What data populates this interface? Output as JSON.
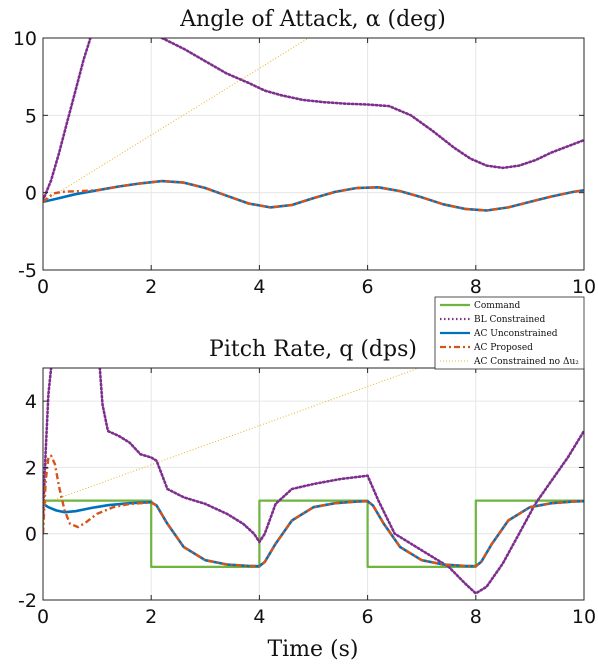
{
  "chart_data": [
    {
      "type": "line",
      "title": "Angle of Attack, α (deg)",
      "xlabel": "",
      "ylabel": "",
      "xlim": [
        0,
        10
      ],
      "ylim": [
        -5,
        10
      ],
      "xticks": [
        0,
        2,
        4,
        6,
        8,
        10
      ],
      "yticks": [
        -5,
        0,
        5,
        10
      ],
      "grid": true,
      "series": [
        {
          "key": "bl",
          "x": [
            0,
            0.15,
            0.3,
            0.45,
            0.6,
            0.75,
            0.85,
            0.9
          ],
          "y": [
            -0.5,
            0.8,
            2.6,
            4.6,
            6.6,
            8.6,
            9.7,
            10.3
          ]
        },
        {
          "key": "bl2",
          "x": [
            2.2,
            2.6,
            3.0,
            3.4,
            3.8,
            4.1,
            4.4,
            4.8,
            5.2,
            5.6,
            6.0,
            6.4,
            6.8,
            7.2,
            7.6,
            7.9,
            8.2,
            8.5,
            8.8,
            9.1,
            9.4,
            9.7,
            10.0
          ],
          "y": [
            10.0,
            9.3,
            8.5,
            7.7,
            7.1,
            6.6,
            6.3,
            6.0,
            5.85,
            5.75,
            5.7,
            5.6,
            5.0,
            4.0,
            2.9,
            2.2,
            1.75,
            1.6,
            1.75,
            2.1,
            2.6,
            3.0,
            3.4
          ]
        },
        {
          "key": "ac_nodelta",
          "x": [
            0,
            10
          ],
          "y": [
            -0.6,
            21.0
          ]
        },
        {
          "key": "ac_unc",
          "x": [
            0,
            0.3,
            0.6,
            1.0,
            1.4,
            1.8,
            2.2,
            2.6,
            3.0,
            3.4,
            3.8,
            4.2,
            4.6,
            5.0,
            5.4,
            5.8,
            6.2,
            6.6,
            7.0,
            7.4,
            7.8,
            8.2,
            8.6,
            9.0,
            9.4,
            9.8,
            10.0
          ],
          "y": [
            -0.6,
            -0.35,
            -0.1,
            0.15,
            0.4,
            0.6,
            0.75,
            0.65,
            0.3,
            -0.2,
            -0.7,
            -0.95,
            -0.8,
            -0.35,
            0.05,
            0.3,
            0.35,
            0.1,
            -0.3,
            -0.75,
            -1.05,
            -1.15,
            -0.95,
            -0.6,
            -0.25,
            0.05,
            0.15
          ]
        },
        {
          "key": "ac_prop",
          "x": [
            0,
            0.1,
            0.2,
            0.35,
            0.5,
            0.7,
            1.0,
            1.4,
            1.8,
            2.2,
            2.6,
            3.0,
            3.4,
            3.8,
            4.2,
            4.6,
            5.0,
            5.4,
            5.8,
            6.2,
            6.6,
            7.0,
            7.4,
            7.8,
            8.2,
            8.6,
            9.0,
            9.4,
            9.8,
            10.0
          ],
          "y": [
            -0.6,
            -0.3,
            -0.05,
            0.05,
            0.08,
            0.1,
            0.15,
            0.4,
            0.6,
            0.75,
            0.65,
            0.3,
            -0.2,
            -0.7,
            -0.95,
            -0.8,
            -0.35,
            0.05,
            0.3,
            0.35,
            0.1,
            -0.3,
            -0.75,
            -1.05,
            -1.15,
            -0.95,
            -0.6,
            -0.25,
            0.05,
            0.15
          ]
        }
      ]
    },
    {
      "type": "line",
      "title": "Pitch Rate, q (dps)",
      "xlabel": "Time (s)",
      "ylabel": "",
      "xlim": [
        0,
        10
      ],
      "ylim": [
        -2,
        5
      ],
      "xticks": [
        0,
        2,
        4,
        6,
        8,
        10
      ],
      "yticks": [
        -2,
        0,
        2,
        4
      ],
      "grid": true,
      "legend": {
        "placement": "top-right",
        "entries": [
          {
            "key": "cmd",
            "label": "Command"
          },
          {
            "key": "bl",
            "label": "BL Constrained"
          },
          {
            "key": "ac_unc",
            "label": "AC Unconstrained"
          },
          {
            "key": "ac_prop",
            "label": "AC Proposed"
          },
          {
            "key": "ac_nodelta",
            "label": "AC Constrained no Δu₂"
          }
        ]
      },
      "series": [
        {
          "key": "cmd",
          "x": [
            0,
            0,
            2,
            2,
            4,
            4,
            6,
            6,
            8,
            8,
            10
          ],
          "y": [
            0,
            1,
            1,
            -1,
            -1,
            1,
            1,
            -1,
            -1,
            1,
            1
          ]
        },
        {
          "key": "bl",
          "x": [
            0,
            0.05,
            0.1,
            0.15
          ],
          "y": [
            0.5,
            2.5,
            4.2,
            5.0
          ]
        },
        {
          "key": "bl2",
          "x": [
            1.05,
            1.1,
            1.2,
            1.4,
            1.6,
            1.8,
            2.0,
            2.1,
            2.3,
            2.6,
            3.0,
            3.4,
            3.7,
            3.9,
            4.0,
            4.1,
            4.3,
            4.6,
            5.0,
            5.5,
            6.0,
            6.2,
            6.5,
            7.0,
            7.5,
            7.8,
            8.0,
            8.2,
            8.5,
            8.8,
            9.1,
            9.4,
            9.7,
            10.0
          ],
          "y": [
            5.0,
            3.9,
            3.1,
            2.95,
            2.75,
            2.4,
            2.3,
            2.2,
            1.35,
            1.1,
            0.9,
            0.6,
            0.3,
            0.0,
            -0.25,
            0.0,
            0.9,
            1.35,
            1.5,
            1.65,
            1.75,
            1.0,
            0.0,
            -0.5,
            -1.0,
            -1.5,
            -1.8,
            -1.6,
            -0.9,
            0.0,
            0.9,
            1.6,
            2.3,
            3.1
          ]
        },
        {
          "key": "ac_nodelta",
          "x": [
            0,
            10
          ],
          "y": [
            0.9,
            6.8
          ]
        },
        {
          "key": "ac_unc",
          "x": [
            0,
            0.1,
            0.25,
            0.4,
            0.6,
            0.9,
            1.2,
            1.6,
            2.0,
            2.1,
            2.3,
            2.6,
            3.0,
            3.4,
            3.8,
            4.0,
            4.1,
            4.3,
            4.6,
            5.0,
            5.4,
            5.8,
            6.0,
            6.1,
            6.3,
            6.6,
            7.0,
            7.4,
            7.8,
            8.0,
            8.1,
            8.3,
            8.6,
            9.0,
            9.4,
            9.8,
            10.0
          ],
          "y": [
            0.9,
            0.8,
            0.7,
            0.65,
            0.68,
            0.78,
            0.86,
            0.92,
            0.95,
            0.85,
            0.3,
            -0.4,
            -0.8,
            -0.93,
            -0.97,
            -0.98,
            -0.85,
            -0.3,
            0.4,
            0.8,
            0.92,
            0.97,
            0.98,
            0.85,
            0.3,
            -0.4,
            -0.8,
            -0.93,
            -0.97,
            -0.98,
            -0.85,
            -0.3,
            0.4,
            0.8,
            0.92,
            0.97,
            0.98
          ]
        },
        {
          "key": "ac_prop",
          "x": [
            0,
            0.05,
            0.1,
            0.15,
            0.22,
            0.3,
            0.4,
            0.5,
            0.65,
            0.8,
            1.0,
            1.3,
            1.6,
            2.0,
            2.1,
            2.3,
            2.6,
            3.0,
            3.4,
            3.8,
            4.0,
            4.1,
            4.3,
            4.6,
            5.0,
            5.4,
            5.8,
            6.0,
            6.1,
            6.3,
            6.6,
            7.0,
            7.4,
            7.8,
            8.0,
            8.1,
            8.3,
            8.6,
            9.0,
            9.4,
            9.8,
            10.0
          ],
          "y": [
            0.0,
            1.6,
            2.3,
            2.35,
            2.1,
            1.4,
            0.7,
            0.3,
            0.2,
            0.35,
            0.6,
            0.8,
            0.9,
            0.94,
            0.85,
            0.3,
            -0.4,
            -0.8,
            -0.93,
            -0.97,
            -0.98,
            -0.85,
            -0.3,
            0.4,
            0.8,
            0.92,
            0.97,
            0.98,
            0.85,
            0.3,
            -0.4,
            -0.8,
            -0.93,
            -0.97,
            -0.98,
            -0.85,
            -0.3,
            0.4,
            0.8,
            0.92,
            0.97,
            0.98
          ]
        }
      ]
    }
  ],
  "styles": {
    "cmd": {
      "color": "#6fb43f",
      "dash": "",
      "width": 2.2
    },
    "bl": {
      "color": "#7e2f8e",
      "dash": "1.5 2.5",
      "width": 2.6
    },
    "bl2": {
      "color": "#7e2f8e",
      "dash": "1.5 2.5",
      "width": 2.6
    },
    "ac_unc": {
      "color": "#0072bd",
      "dash": "",
      "width": 2.6
    },
    "ac_prop": {
      "color": "#d95319",
      "dash": "6 3 2 3",
      "width": 2.4
    },
    "ac_nodelta": {
      "color": "#edb120",
      "dash": "1 2",
      "width": 1.0
    }
  }
}
